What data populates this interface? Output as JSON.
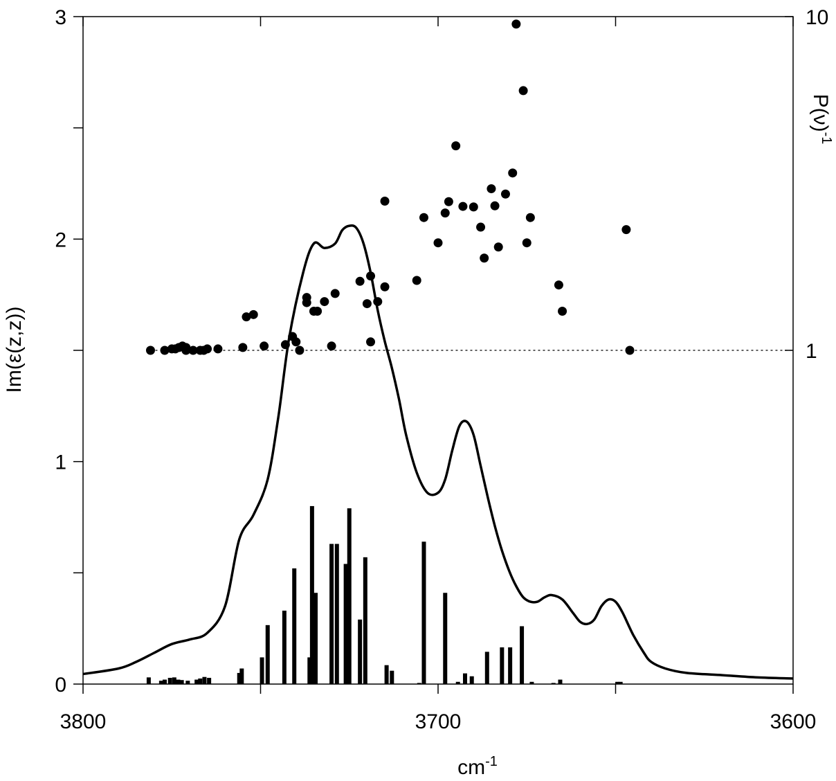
{
  "chart_data": {
    "type": "line",
    "title": "",
    "xlabel_main": "cm",
    "xlabel_sup": "-1",
    "ylabel_left": "Im(ε(z,z))",
    "ylabel_right_main": "P(ν)",
    "ylabel_right_sup": "-1",
    "xlim": [
      3800,
      3600
    ],
    "ylim_left": [
      0,
      3
    ],
    "ylim_right_log": [
      0.1,
      10
    ],
    "x_tick_labels": [
      "3800",
      "3700",
      "3600"
    ],
    "x_ticks": [
      3800,
      3750,
      3700,
      3650,
      3600
    ],
    "y_left_tick_labels": [
      "0",
      "1",
      "2",
      "3"
    ],
    "y_left_ticks": [
      0,
      0.5,
      1,
      1.5,
      2,
      2.5,
      3
    ],
    "y_right_tick_labels": [
      "1",
      "10"
    ],
    "y_right_ticks": [
      1,
      10
    ],
    "reference_line": {
      "y_right": 1,
      "style": "dotted"
    },
    "spectrum_line": {
      "x": [
        3800,
        3790,
        3785,
        3780,
        3775,
        3770,
        3765,
        3760,
        3756,
        3752,
        3748,
        3745,
        3742,
        3738,
        3735,
        3732,
        3729,
        3727,
        3725,
        3723,
        3721,
        3719,
        3717,
        3715,
        3713,
        3711,
        3709,
        3706,
        3703,
        3700,
        3698,
        3696,
        3694,
        3692,
        3690,
        3688,
        3686,
        3684,
        3682,
        3680,
        3678,
        3676,
        3674,
        3672,
        3670,
        3668,
        3665,
        3662,
        3660,
        3658,
        3656,
        3654,
        3652,
        3650,
        3648,
        3645,
        3642,
        3640,
        3636,
        3630,
        3620,
        3610,
        3600
      ],
      "y": [
        0.045,
        0.07,
        0.1,
        0.14,
        0.18,
        0.2,
        0.23,
        0.35,
        0.65,
        0.76,
        0.92,
        1.2,
        1.55,
        1.85,
        1.98,
        1.96,
        1.98,
        2.04,
        2.06,
        2.05,
        1.98,
        1.85,
        1.68,
        1.54,
        1.42,
        1.28,
        1.12,
        0.95,
        0.86,
        0.86,
        0.92,
        1.05,
        1.16,
        1.18,
        1.12,
        0.98,
        0.84,
        0.71,
        0.6,
        0.51,
        0.44,
        0.39,
        0.37,
        0.37,
        0.39,
        0.4,
        0.38,
        0.32,
        0.28,
        0.27,
        0.29,
        0.35,
        0.38,
        0.37,
        0.32,
        0.22,
        0.14,
        0.1,
        0.07,
        0.05,
        0.04,
        0.03,
        0.025
      ]
    },
    "stick_spectrum": {
      "x": [
        3781.5,
        3778,
        3777,
        3775.5,
        3774.3,
        3773.2,
        3772.2,
        3770.5,
        3768,
        3767,
        3765.8,
        3764.5,
        3756,
        3755.3,
        3749.6,
        3748,
        3743.3,
        3740.5,
        3736.2,
        3735.5,
        3735.2,
        3734.5,
        3730,
        3728.5,
        3726,
        3725,
        3722,
        3720.5,
        3714.5,
        3713,
        3705.3,
        3704,
        3698,
        3694.4,
        3692.4,
        3690.5,
        3686.2,
        3682,
        3679.7,
        3676.4,
        3673.6,
        3667.5,
        3665.6,
        3649.5,
        3648.6
      ],
      "y": [
        0.03,
        0.015,
        0.02,
        0.028,
        0.03,
        0.02,
        0.018,
        0.015,
        0.02,
        0.025,
        0.032,
        0.028,
        0.05,
        0.07,
        0.12,
        0.265,
        0.33,
        0.52,
        0.12,
        0.8,
        0.27,
        0.41,
        0.63,
        0.63,
        0.54,
        0.79,
        0.29,
        0.57,
        0.085,
        0.06,
        0.005,
        0.64,
        0.41,
        0.01,
        0.048,
        0.035,
        0.145,
        0.165,
        0.165,
        0.26,
        0.01,
        0.005,
        0.02,
        0.01,
        0.01
      ]
    },
    "participation_ratio_points": {
      "x": [
        3781,
        3777,
        3775,
        3774,
        3773,
        3772,
        3771,
        3771,
        3769,
        3767,
        3766,
        3765,
        3762,
        3755,
        3754,
        3752,
        3749,
        3743,
        3741,
        3740,
        3739,
        3737,
        3737,
        3735,
        3734,
        3732,
        3730,
        3729,
        3722,
        3720,
        3719,
        3719,
        3717,
        3715,
        3715,
        3706,
        3704,
        3700,
        3698,
        3697,
        3695,
        3693,
        3690,
        3688,
        3687,
        3685,
        3684,
        3683,
        3681,
        3679,
        3678,
        3676,
        3675,
        3674,
        3666,
        3665,
        3647,
        3646
      ],
      "y_right": [
        1.0,
        1.0,
        1.01,
        1.01,
        1.02,
        1.03,
        1.02,
        1.0,
        1.0,
        1.0,
        1.0,
        1.01,
        1.01,
        1.02,
        1.26,
        1.28,
        1.03,
        1.04,
        1.1,
        1.06,
        1.0,
        1.39,
        1.44,
        1.31,
        1.31,
        1.4,
        1.03,
        1.48,
        1.61,
        1.38,
        1.06,
        1.67,
        1.4,
        2.8,
        1.55,
        1.62,
        2.5,
        2.1,
        2.58,
        2.79,
        4.1,
        2.7,
        2.69,
        2.34,
        1.89,
        3.05,
        2.71,
        2.04,
        2.94,
        3.4,
        9.5,
        6.0,
        2.1,
        2.5,
        1.57,
        1.31,
        2.3,
        1.0
      ]
    }
  }
}
